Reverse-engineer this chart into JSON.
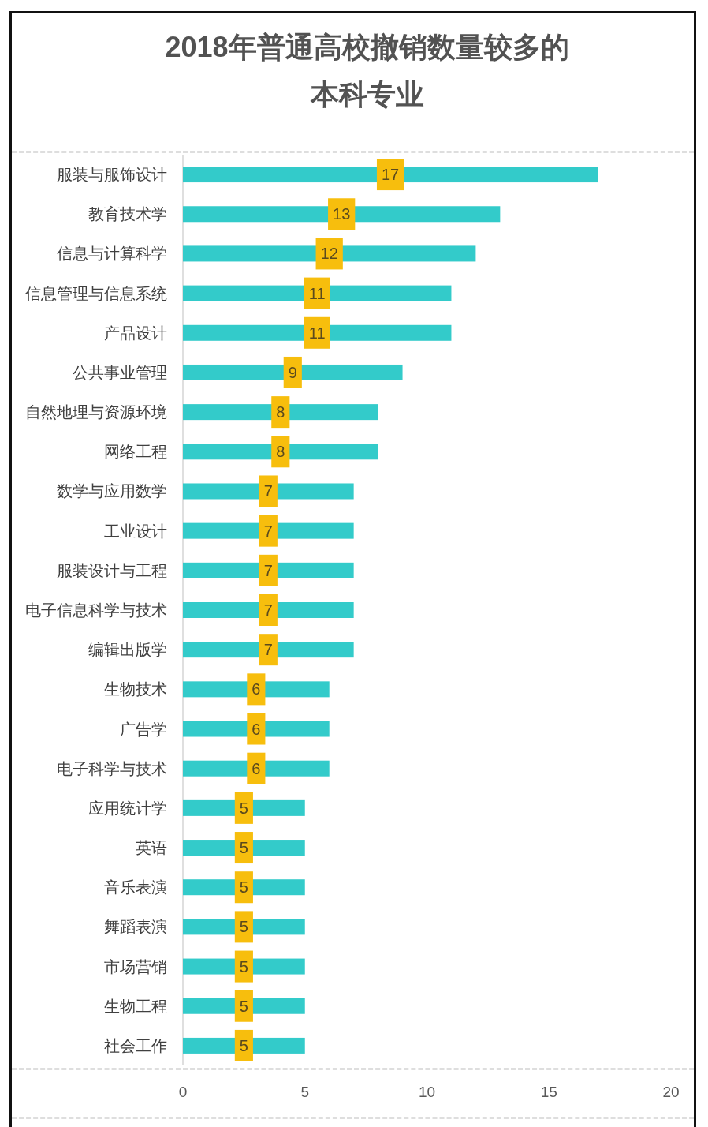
{
  "chart_data": {
    "type": "bar",
    "orientation": "horizontal",
    "title": "2018年普通高校撤销数量较多的本科专业",
    "categories": [
      "服装与服饰设计",
      "教育技术学",
      "信息与计算科学",
      "信息管理与信息系统",
      "产品设计",
      "公共事业管理",
      "自然地理与资源环境",
      "网络工程",
      "数学与应用数学",
      "工业设计",
      "服装设计与工程",
      "电子信息科学与技术",
      "编辑出版学",
      "生物技术",
      "广告学",
      "电子科学与技术",
      "应用统计学",
      "英语",
      "音乐表演",
      "舞蹈表演",
      "市场营销",
      "生物工程",
      "社会工作"
    ],
    "values": [
      17,
      13,
      12,
      11,
      11,
      9,
      8,
      8,
      7,
      7,
      7,
      7,
      7,
      6,
      6,
      6,
      5,
      5,
      5,
      5,
      5,
      5,
      5
    ],
    "color": "#33cbca",
    "xlim": [
      0,
      20
    ],
    "xticks": [
      0,
      5,
      10,
      15,
      20
    ],
    "data_labels": true
  }
}
